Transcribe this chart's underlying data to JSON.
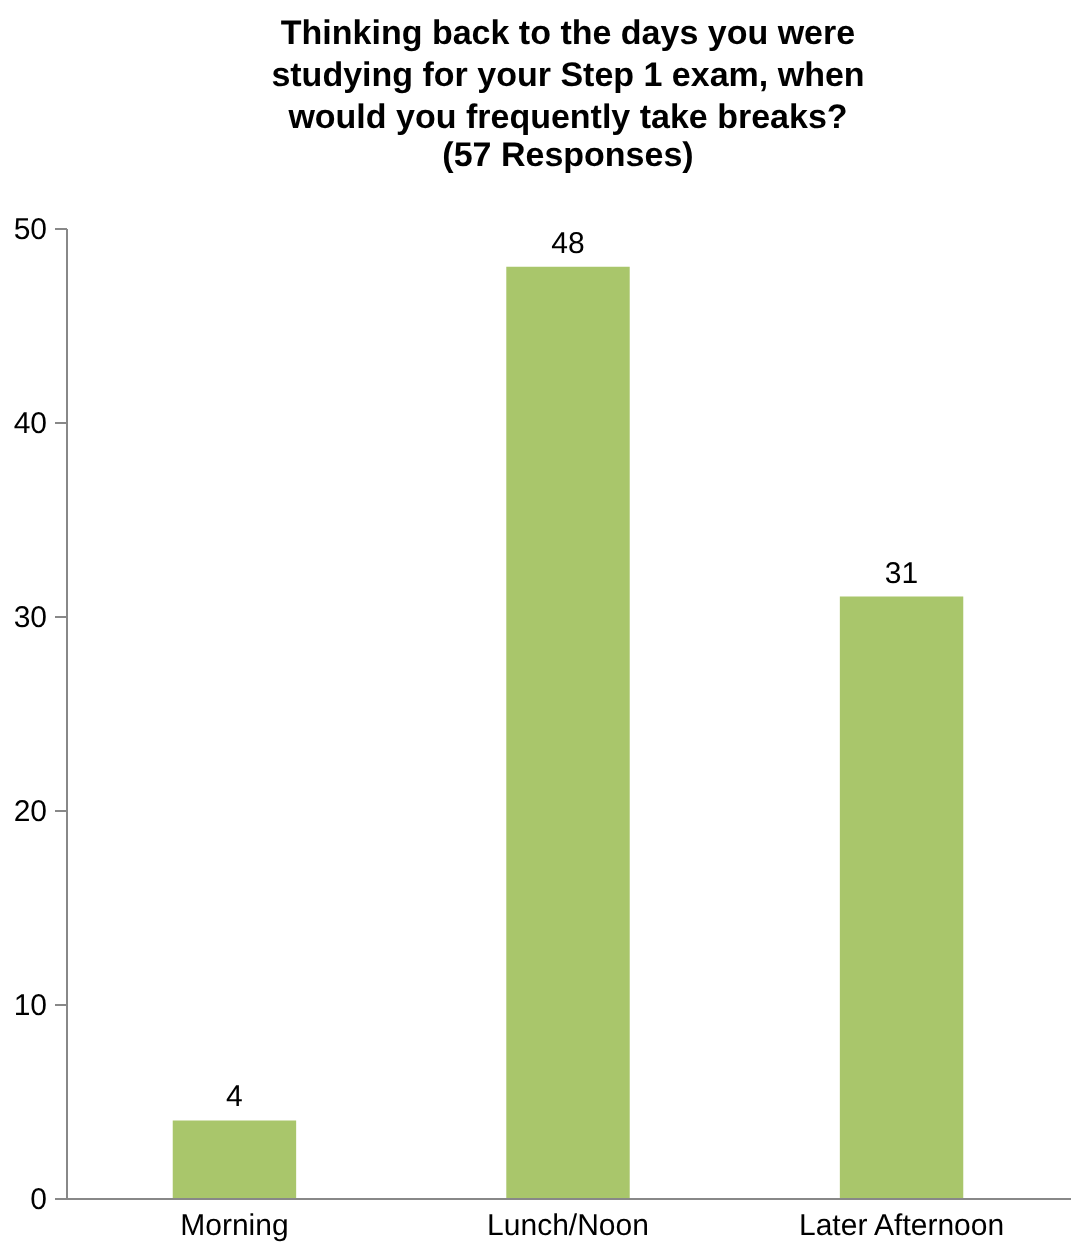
{
  "chart_data": {
    "type": "bar",
    "title": "Thinking back to the days you were\nstudying for your Step 1 exam, when\nwould you frequently take breaks?",
    "subtitle": "(57 Responses)",
    "categories": [
      "Morning",
      "Lunch/Noon",
      "Later Afternoon"
    ],
    "values": [
      4,
      48,
      31
    ],
    "color": "#a9c66b",
    "ylim": [
      0,
      50
    ],
    "yticks": [
      0,
      10,
      20,
      30,
      40,
      50
    ],
    "grid": false,
    "data_labels": true
  }
}
